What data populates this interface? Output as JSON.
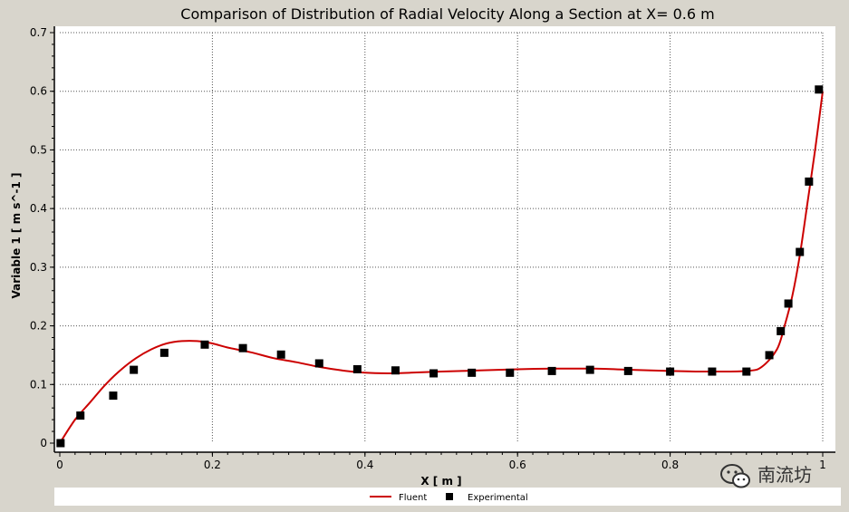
{
  "chart_data": {
    "type": "line",
    "title": "Comparison of Distribution of Radial Velocity Along a Section at X= 0.6 m",
    "xlabel": "X [ m ]",
    "ylabel": "Variable 1 [ m s^-1 ]",
    "xlim": [
      0,
      1.0
    ],
    "ylim": [
      0,
      0.7
    ],
    "xticks": [
      "0",
      "0.2",
      "0.4",
      "0.6",
      "0.8",
      "1"
    ],
    "yticks": [
      "0",
      "0.1",
      "0.2",
      "0.3",
      "0.4",
      "0.5",
      "0.6",
      "0.7"
    ],
    "grid": true,
    "legend_position": "bottom",
    "series": [
      {
        "name": "Fluent",
        "kind": "line",
        "color": "#cc0000",
        "x": [
          0,
          0.02,
          0.04,
          0.06,
          0.08,
          0.1,
          0.12,
          0.14,
          0.16,
          0.18,
          0.2,
          0.22,
          0.25,
          0.28,
          0.31,
          0.34,
          0.37,
          0.4,
          0.43,
          0.46,
          0.5,
          0.55,
          0.6,
          0.65,
          0.7,
          0.75,
          0.8,
          0.85,
          0.9,
          0.92,
          0.94,
          0.95,
          0.96,
          0.97,
          0.98,
          0.99,
          1.0
        ],
        "y": [
          0.0,
          0.04,
          0.07,
          0.1,
          0.125,
          0.145,
          0.16,
          0.17,
          0.174,
          0.174,
          0.17,
          0.163,
          0.155,
          0.145,
          0.138,
          0.13,
          0.124,
          0.12,
          0.119,
          0.12,
          0.122,
          0.124,
          0.126,
          0.127,
          0.127,
          0.125,
          0.123,
          0.122,
          0.123,
          0.13,
          0.16,
          0.2,
          0.25,
          0.32,
          0.41,
          0.5,
          0.6
        ]
      },
      {
        "name": "Experimental",
        "kind": "scatter",
        "color": "#000000",
        "x": [
          0.001,
          0.027,
          0.07,
          0.097,
          0.137,
          0.19,
          0.24,
          0.29,
          0.34,
          0.39,
          0.44,
          0.49,
          0.54,
          0.59,
          0.645,
          0.695,
          0.745,
          0.8,
          0.855,
          0.9,
          0.93,
          0.945,
          0.955,
          0.97,
          0.982,
          0.995
        ],
        "y": [
          0.0,
          0.047,
          0.081,
          0.125,
          0.154,
          0.168,
          0.162,
          0.151,
          0.136,
          0.126,
          0.124,
          0.119,
          0.12,
          0.12,
          0.123,
          0.125,
          0.123,
          0.122,
          0.122,
          0.122,
          0.15,
          0.191,
          0.238,
          0.326,
          0.446,
          0.603
        ]
      }
    ]
  },
  "watermark": {
    "text": "南流坊"
  }
}
